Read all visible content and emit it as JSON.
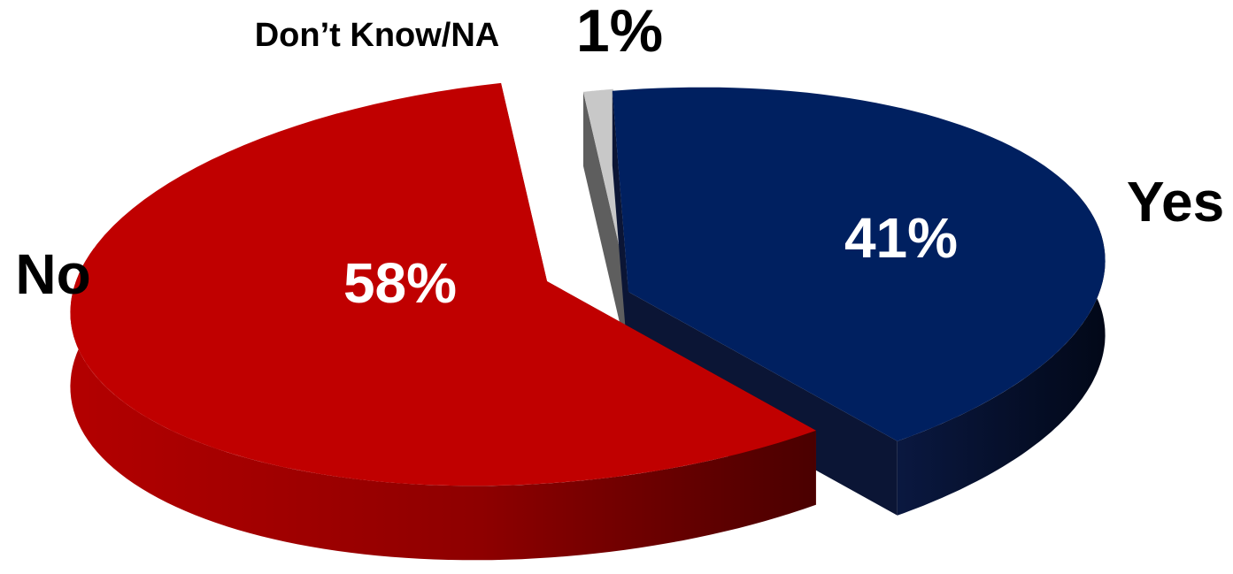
{
  "chart_data": {
    "type": "pie",
    "title": "",
    "style": "3d-exploded",
    "legend": "none",
    "slices": [
      {
        "label": "Yes",
        "value": 41,
        "value_label": "41%",
        "color": "#002060",
        "side_color": "#0b1535"
      },
      {
        "label": "No",
        "value": 58,
        "value_label": "58%",
        "color": "#c00000",
        "side_color": "#8a0000"
      },
      {
        "label": "Don’t Know/NA",
        "value": 1,
        "value_label": "1%",
        "color": "#c8c8c8",
        "side_color": "#5e5e5e"
      }
    ]
  }
}
